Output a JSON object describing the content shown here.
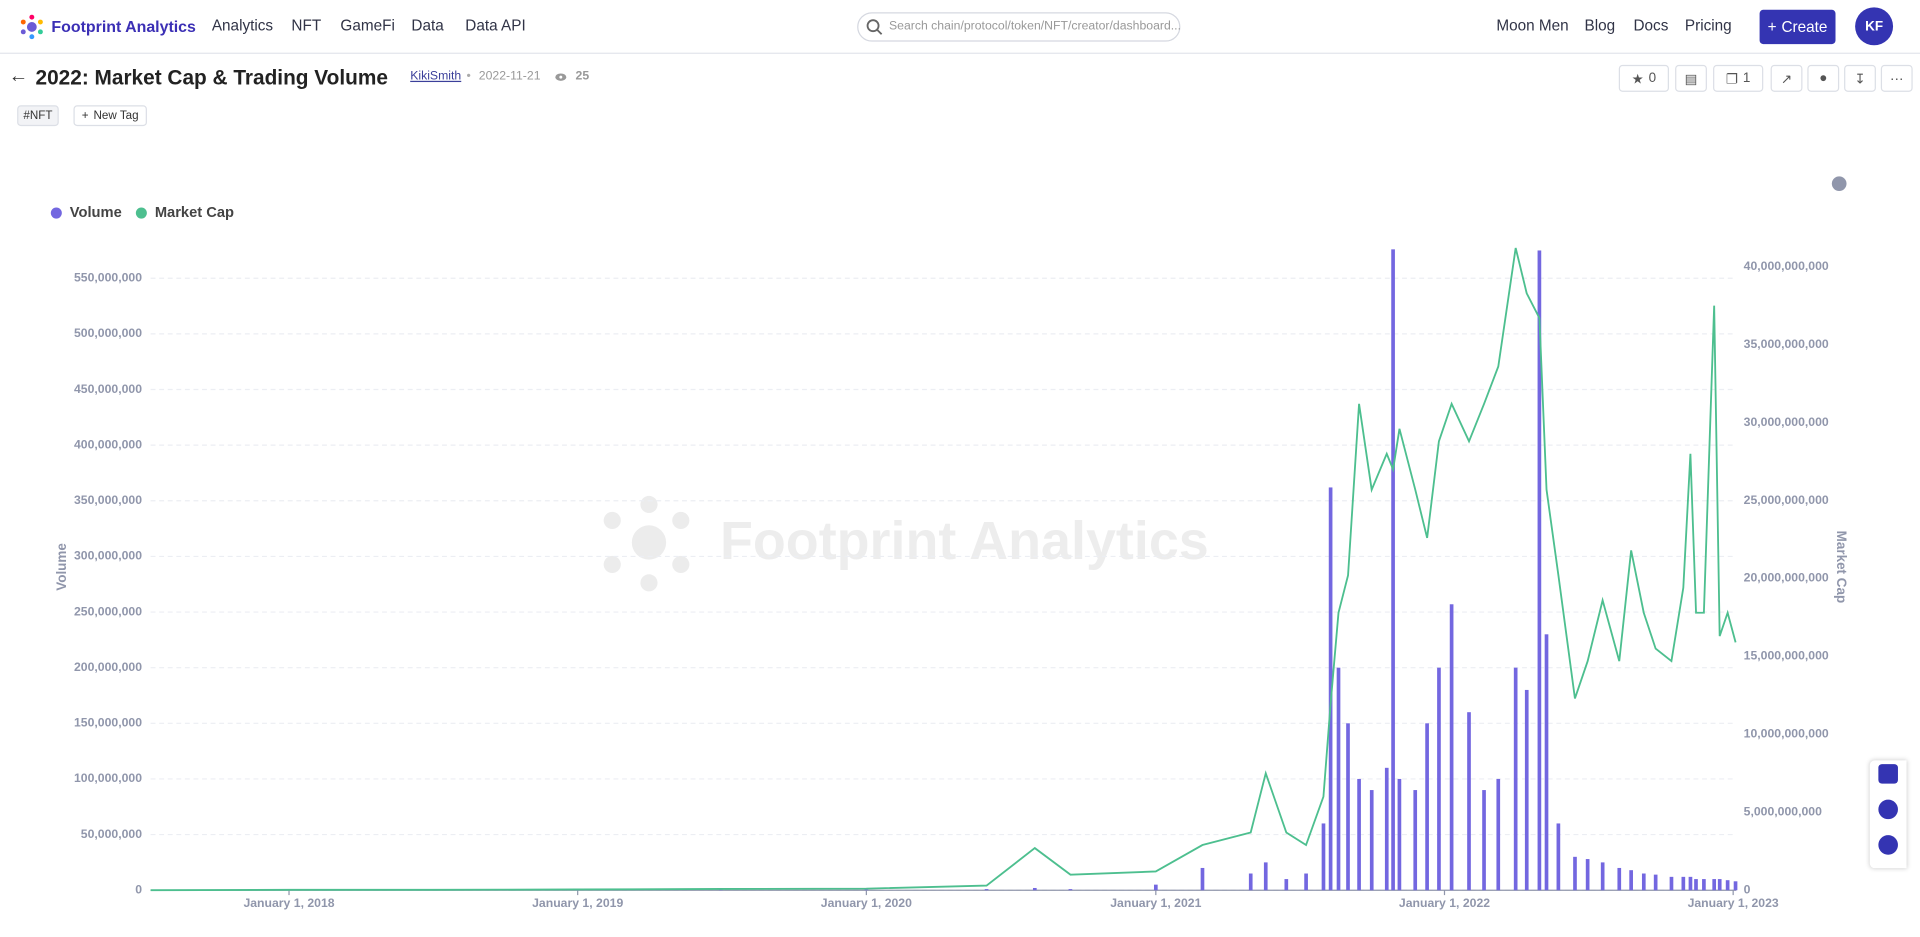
{
  "nav": {
    "brand": "Footprint Analytics",
    "links": [
      "Analytics",
      "NFT",
      "GameFi",
      "Data",
      "Data API"
    ],
    "search_placeholder": "Search chain/protocol/token/NFT/creator/dashboard...",
    "right_links": [
      "Moon Men",
      "Blog",
      "Docs",
      "Pricing"
    ],
    "create": "Create",
    "avatar": "KF"
  },
  "header": {
    "title": "2022: Market Cap & Trading Volume",
    "author": "KikiSmith",
    "date": "2022-11-21",
    "views": 25,
    "tags": [
      "#NFT"
    ],
    "new_tag": "New Tag",
    "stars": 0,
    "copies": 1
  },
  "chart_data": {
    "type": "bar-line",
    "watermark": "Footprint Analytics",
    "ylabel": "Volume",
    "y2label": "Market Cap",
    "legend": "top-left",
    "grid": true,
    "xlim": [
      "2017-07-10",
      "2023-01-05"
    ],
    "xticks": [
      {
        "value": "2018-01-01",
        "label": "January 1, 2018"
      },
      {
        "value": "2019-01-01",
        "label": "January 1, 2019"
      },
      {
        "value": "2020-01-01",
        "label": "January 1, 2020"
      },
      {
        "value": "2021-01-01",
        "label": "January 1, 2021"
      },
      {
        "value": "2022-01-01",
        "label": "January 1, 2022"
      },
      {
        "value": "2023-01-01",
        "label": "January 1, 2023"
      }
    ],
    "ylim": [
      0,
      580000000
    ],
    "yticks": [
      0,
      {
        "value": 50000000,
        "label": "50,000,000"
      },
      {
        "value": 100000000,
        "label": "100,000,000"
      },
      {
        "value": 150000000,
        "label": "150,000,000"
      },
      {
        "value": 200000000,
        "label": "200,000,000"
      },
      {
        "value": 250000000,
        "label": "250,000,000"
      },
      {
        "value": 300000000,
        "label": "300,000,000"
      },
      {
        "value": 350000000,
        "label": "350,000,000"
      },
      {
        "value": 400000000,
        "label": "400,000,000"
      },
      {
        "value": 450000000,
        "label": "450,000,000"
      },
      {
        "value": 500000000,
        "label": "500,000,000"
      },
      {
        "value": 550000000,
        "label": "550,000,000"
      }
    ],
    "y2lim": [
      0,
      41400000000
    ],
    "y2ticks": [
      0,
      {
        "value": 5000000000,
        "label": "5,000,000,000"
      },
      {
        "value": 10000000000,
        "label": "10,000,000,000"
      },
      {
        "value": 15000000000,
        "label": "15,000,000,000"
      },
      {
        "value": 20000000000,
        "label": "20,000,000,000"
      },
      {
        "value": 25000000000,
        "label": "25,000,000,000"
      },
      {
        "value": 30000000000,
        "label": "30,000,000,000"
      },
      {
        "value": 35000000000,
        "label": "35,000,000,000"
      },
      {
        "value": 40000000000,
        "label": "40,000,000,000"
      }
    ],
    "x": [
      "2017-07-10",
      "2018-01-01",
      "2018-07-01",
      "2019-01-01",
      "2019-07-01",
      "2020-01-01",
      "2020-06-01",
      "2020-08-01",
      "2020-09-15",
      "2021-01-01",
      "2021-03-01",
      "2021-05-01",
      "2021-05-20",
      "2021-06-15",
      "2021-07-10",
      "2021-08-01",
      "2021-08-10",
      "2021-08-20",
      "2021-09-01",
      "2021-09-15",
      "2021-10-01",
      "2021-10-20",
      "2021-10-28",
      "2021-11-05",
      "2021-11-25",
      "2021-12-10",
      "2021-12-25",
      "2022-01-10",
      "2022-02-01",
      "2022-02-20",
      "2022-03-10",
      "2022-04-01",
      "2022-04-15",
      "2022-05-01",
      "2022-05-10",
      "2022-05-25",
      "2022-06-15",
      "2022-07-01",
      "2022-07-20",
      "2022-08-10",
      "2022-08-25",
      "2022-09-10",
      "2022-09-25",
      "2022-10-15",
      "2022-10-30",
      "2022-11-08",
      "2022-11-15",
      "2022-11-25",
      "2022-12-08",
      "2022-12-15",
      "2022-12-25",
      "2023-01-04"
    ],
    "series": [
      {
        "name": "Volume",
        "color": "#7367e0",
        "kind": "bar",
        "values": [
          0,
          300000,
          300000,
          500000,
          500000,
          500000,
          1000000,
          2000000,
          1000000,
          5000000,
          20000000,
          15000000,
          25000000,
          10000000,
          15000000,
          60000000,
          362000000,
          200000000,
          150000000,
          100000000,
          90000000,
          110000000,
          576000000,
          100000000,
          90000000,
          150000000,
          200000000,
          257000000,
          160000000,
          90000000,
          100000000,
          200000000,
          180000000,
          575000000,
          230000000,
          60000000,
          30000000,
          28000000,
          25000000,
          20000000,
          18000000,
          15000000,
          14000000,
          12000000,
          12000000,
          12000000,
          10000000,
          10000000,
          10000000,
          10000000,
          9000000,
          8000000
        ]
      },
      {
        "name": "Market Cap",
        "color": "#4dbf8f",
        "kind": "line",
        "axis": "y2",
        "values": [
          0,
          20000000,
          20000000,
          50000000,
          80000000,
          100000000,
          300000000,
          2700000000,
          1000000000,
          1200000000,
          2900000000,
          3700000000,
          7500000000,
          3700000000,
          2900000000,
          6000000000,
          12000000000,
          17800000000,
          20200000000,
          31200000000,
          25700000000,
          28000000000,
          27000000000,
          29600000000,
          25700000000,
          22600000000,
          28800000000,
          31200000000,
          28800000000,
          31200000000,
          33600000000,
          41200000000,
          38300000000,
          36700000000,
          25700000000,
          20200000000,
          12300000000,
          14700000000,
          18600000000,
          14700000000,
          21800000000,
          17800000000,
          15500000000,
          14700000000,
          19400000000,
          28000000000,
          17800000000,
          17800000000,
          37500000000,
          16300000000,
          17800000000,
          15900000000
        ]
      }
    ]
  }
}
